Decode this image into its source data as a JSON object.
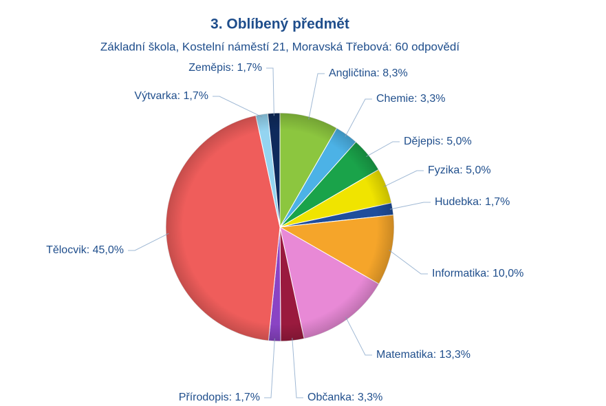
{
  "chart_data": {
    "type": "pie",
    "title": "3. Oblíbený předmět",
    "subtitle": "Základní škola, Kostelní náměstí 21, Moravská Třebová: 60 odpovědí",
    "values": [
      8.3,
      3.3,
      5.0,
      5.0,
      1.7,
      10.0,
      13.3,
      3.3,
      1.7,
      45.0,
      1.7,
      1.7
    ],
    "value_labels": [
      "Angličtina: 8,3%",
      "Chemie: 3,3%",
      "Dějepis: 5,0%",
      "Fyzika: 5,0%",
      "Hudebka: 1,7%",
      "Informatika: 10,0%",
      "Matematika: 13,3%",
      "Občanka: 3,3%",
      "Přírodopis: 1,7%",
      "Tělocvik: 45,0%",
      "Výtvarka: 1,7%",
      "Zeměpis: 1,7%"
    ],
    "colors": [
      "#8cc63f",
      "#4cb2e6",
      "#1aa34a",
      "#f0e400",
      "#1f4e9c",
      "#f5a52a",
      "#e889d6",
      "#9a1a3e",
      "#8a44c4",
      "#ef5d5b",
      "#94d4f0",
      "#0e2a5c"
    ]
  }
}
